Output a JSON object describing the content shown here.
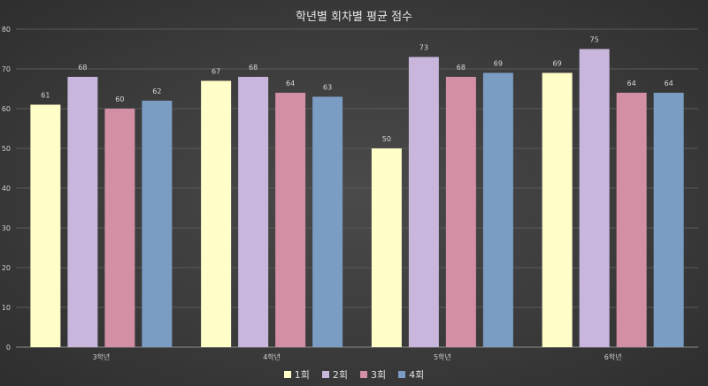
{
  "chart_data": {
    "type": "bar",
    "title": "학년별 회차별 평균 점수",
    "categories": [
      "3학년",
      "4학년",
      "5학년",
      "6학년"
    ],
    "series": [
      {
        "name": "1회",
        "color": "#fffdc8",
        "values": [
          61,
          67,
          50,
          69
        ]
      },
      {
        "name": "2회",
        "color": "#c8b6dc",
        "values": [
          68,
          68,
          73,
          75
        ]
      },
      {
        "name": "3회",
        "color": "#d38fa3",
        "values": [
          60,
          64,
          68,
          64
        ]
      },
      {
        "name": "4회",
        "color": "#7b9cc3",
        "values": [
          62,
          63,
          69,
          64
        ]
      }
    ],
    "ylim": [
      0,
      80
    ],
    "yticks": [
      0,
      10,
      20,
      30,
      40,
      50,
      60,
      70,
      80
    ],
    "grid": true,
    "legend_position": "bottom",
    "data_labels": true
  }
}
